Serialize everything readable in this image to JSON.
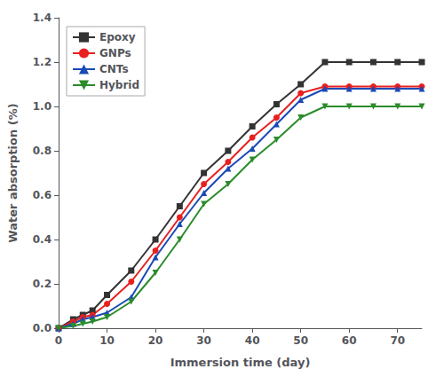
{
  "chart_data": {
    "type": "line",
    "xlabel": "Immersion time (day)",
    "ylabel": "Water absorption (%)",
    "xlim": [
      0,
      75
    ],
    "ylim": [
      0,
      1.4
    ],
    "xticks": [
      0,
      10,
      20,
      30,
      40,
      50,
      60,
      70
    ],
    "yticks": [
      {
        "value": 0,
        "label": "0.0"
      },
      0.2,
      0.4,
      0.6,
      0.8,
      {
        "value": 1,
        "label": "1.0"
      },
      1.2,
      1.4
    ],
    "grid": false,
    "legend": "upper left",
    "x": [
      0,
      3,
      5,
      7,
      10,
      15,
      20,
      25,
      30,
      35,
      40,
      45,
      50,
      55,
      60,
      65,
      70,
      75
    ],
    "series": [
      {
        "name": "Epoxy",
        "color": "#333333",
        "marker": "square",
        "values": [
          0.0,
          0.04,
          0.06,
          0.08,
          0.15,
          0.26,
          0.4,
          0.55,
          0.7,
          0.8,
          0.91,
          1.01,
          1.1,
          1.2,
          1.2,
          1.2,
          1.2,
          1.2
        ]
      },
      {
        "name": "GNPs",
        "color": "#e82020",
        "marker": "circle",
        "values": [
          0.0,
          0.03,
          0.05,
          0.06,
          0.11,
          0.21,
          0.35,
          0.5,
          0.65,
          0.75,
          0.86,
          0.95,
          1.06,
          1.09,
          1.09,
          1.09,
          1.09,
          1.09
        ]
      },
      {
        "name": "CNTs",
        "color": "#1a4ab5",
        "marker": "triangle-up",
        "values": [
          0.0,
          0.02,
          0.04,
          0.05,
          0.07,
          0.14,
          0.32,
          0.47,
          0.61,
          0.72,
          0.81,
          0.92,
          1.03,
          1.08,
          1.08,
          1.08,
          1.08,
          1.08
        ]
      },
      {
        "name": "Hybrid",
        "color": "#2a8c2a",
        "marker": "triangle-down",
        "values": [
          0.0,
          0.01,
          0.02,
          0.03,
          0.05,
          0.12,
          0.25,
          0.4,
          0.56,
          0.65,
          0.76,
          0.85,
          0.95,
          1.0,
          1.0,
          1.0,
          1.0,
          1.0
        ]
      }
    ]
  }
}
